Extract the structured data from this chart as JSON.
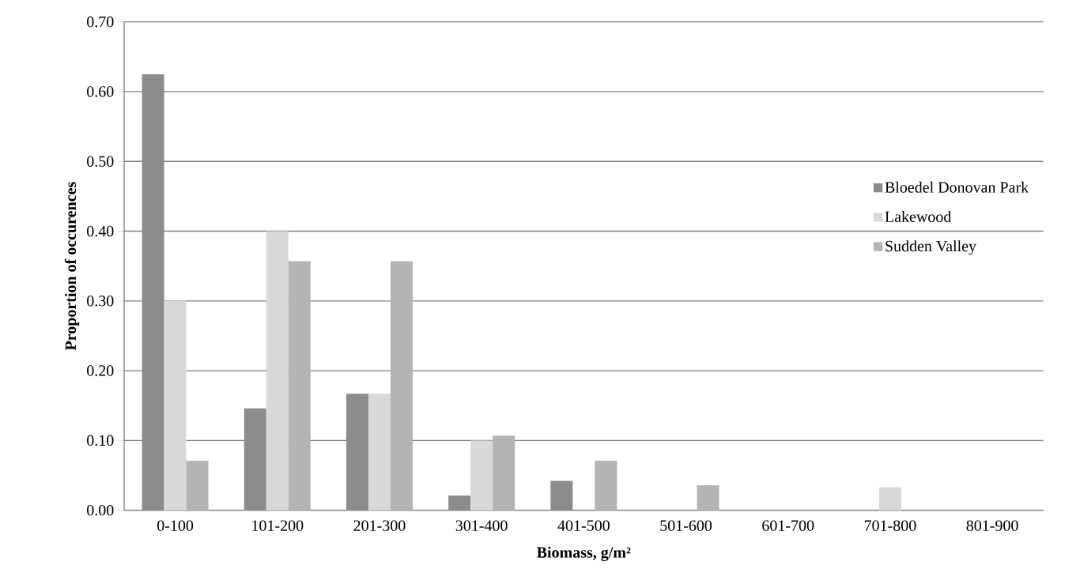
{
  "chart_data": {
    "type": "bar",
    "xlabel": "Biomass, g/m²",
    "ylabel": "Proportion of occurences",
    "categories": [
      "0-100",
      "101-200",
      "201-300",
      "301-400",
      "401-500",
      "501-600",
      "601-700",
      "701-800",
      "801-900"
    ],
    "series": [
      {
        "name": "Bloedel Donovan Park",
        "color": "#8c8c8c",
        "values": [
          0.625,
          0.146,
          0.167,
          0.021,
          0.042,
          0,
          0,
          0,
          0
        ]
      },
      {
        "name": "Lakewood",
        "color": "#d9d9d9",
        "values": [
          0.3,
          0.4,
          0.167,
          0.1,
          0,
          0,
          0,
          0.033,
          0
        ]
      },
      {
        "name": "Sudden Valley",
        "color": "#b4b4b4",
        "values": [
          0.071,
          0.357,
          0.357,
          0.107,
          0.071,
          0.036,
          0,
          0,
          0
        ]
      }
    ],
    "ylim": [
      0,
      0.7
    ],
    "yticks": [
      {
        "value": 0,
        "label": "0.00"
      },
      {
        "value": 0.1,
        "label": "0.10"
      },
      {
        "value": 0.2,
        "label": "0.20"
      },
      {
        "value": 0.3,
        "label": "0.30"
      },
      {
        "value": 0.4,
        "label": "0.40"
      },
      {
        "value": 0.5,
        "label": "0.50"
      },
      {
        "value": 0.6,
        "label": "0.60"
      },
      {
        "value": 0.7,
        "label": "0.70"
      }
    ],
    "grid": "y",
    "legend": "right"
  }
}
